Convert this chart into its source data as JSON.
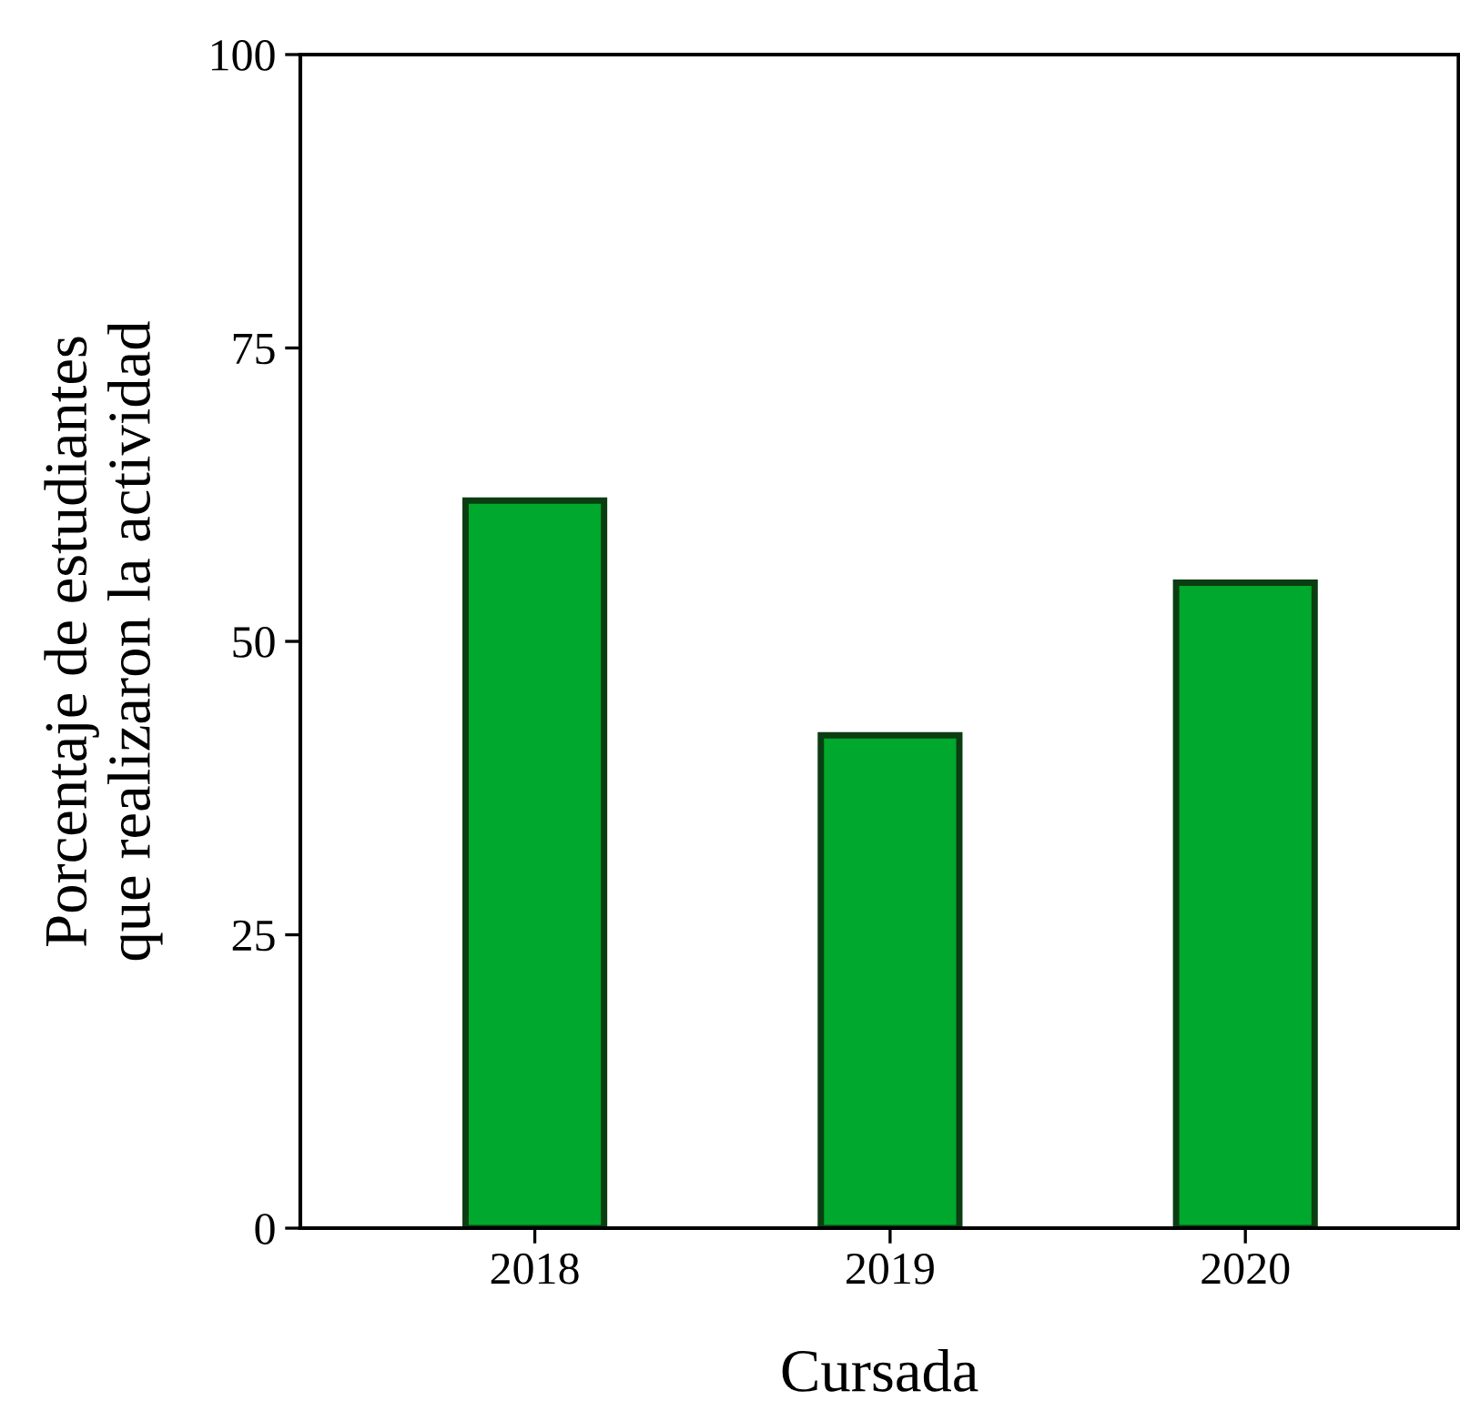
{
  "chart_data": {
    "type": "bar",
    "xlabel": "Cursada",
    "ylabel": "Porcentaje de estudiantes\nque realizaron la actividad",
    "categories": [
      "2018",
      "2019",
      "2020"
    ],
    "values": [
      62,
      42,
      55
    ],
    "color": "#00a82d",
    "ylim": [
      0,
      100
    ],
    "yticks": [
      0,
      25,
      50,
      75,
      100
    ],
    "grid": false
  }
}
